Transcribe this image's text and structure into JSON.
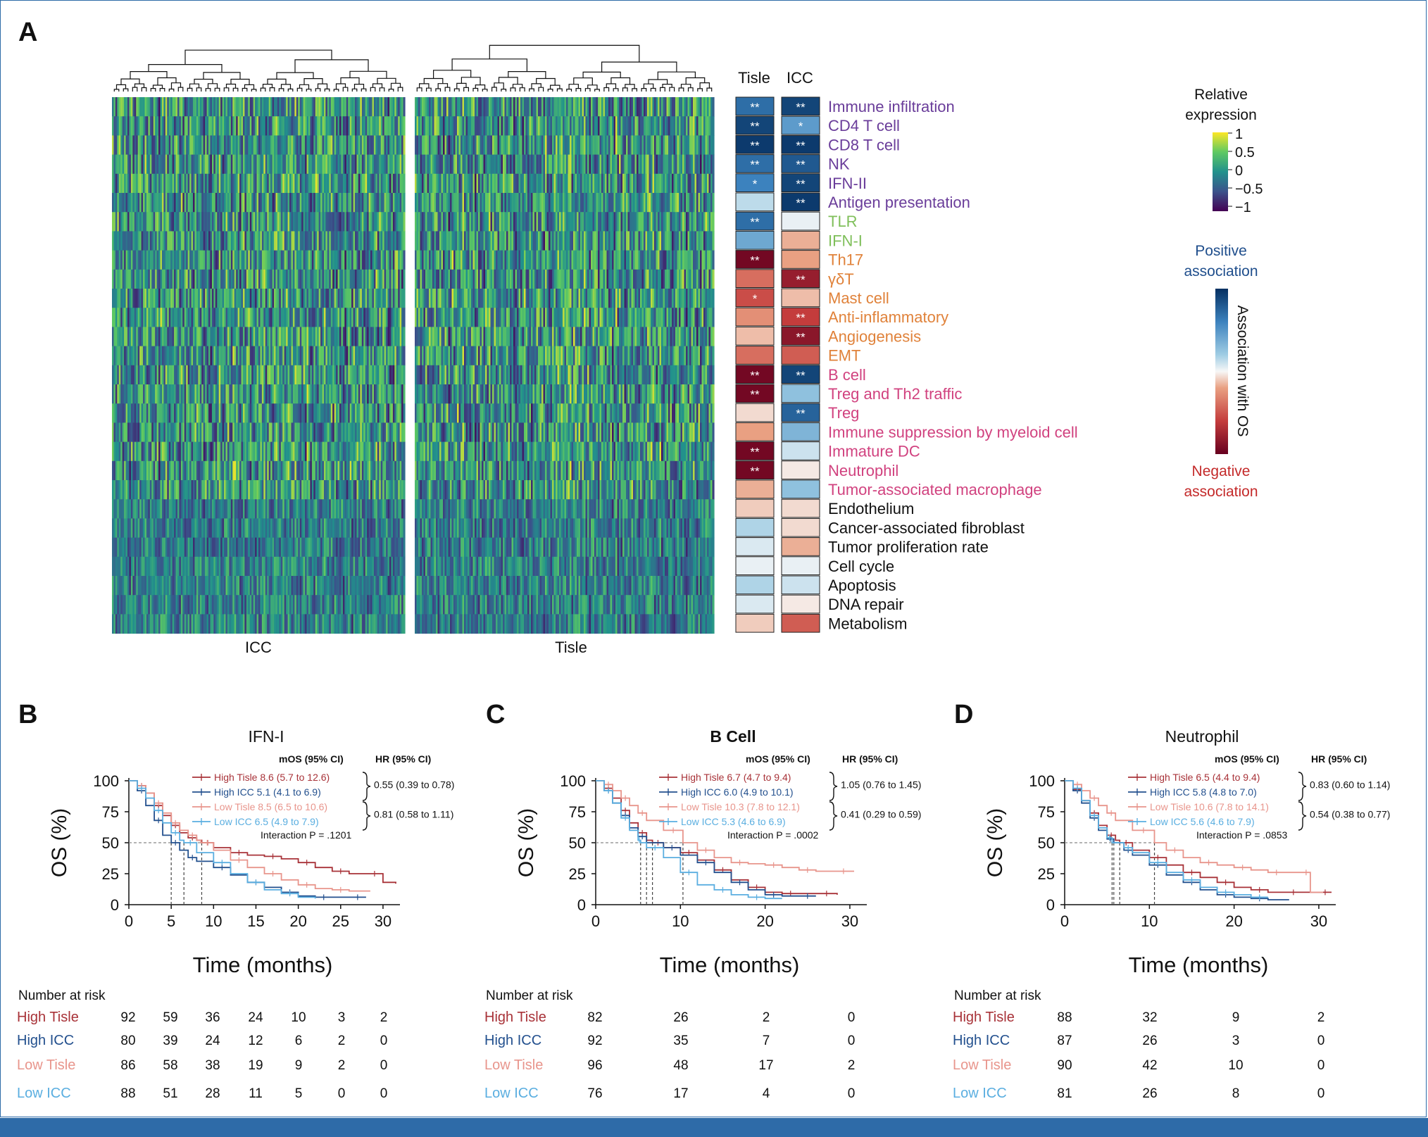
{
  "heatmap": {
    "panel_letter": "A",
    "left_label": "ICC",
    "right_label": "Tisle",
    "assoc_headers": [
      "Tisle",
      "ICC"
    ],
    "colorbar_title": [
      "Relative",
      "expression"
    ],
    "colorbar_ticks": [
      "1",
      "0.5",
      "0",
      "−0.5",
      "−1"
    ],
    "positive_label": [
      "Positive",
      "association"
    ],
    "negative_label": [
      "Negative",
      "association"
    ],
    "assoc_axis_label": "Association with OS",
    "rows": [
      {
        "name": "Immune infiltration",
        "color": "#6a3d9a",
        "tisle": 0.7,
        "icc": 0.9,
        "tisle_star": "**",
        "icc_star": "**"
      },
      {
        "name": "CD4 T cell",
        "color": "#6a3d9a",
        "tisle": 0.9,
        "icc": 0.5,
        "tisle_star": "**",
        "icc_star": "*"
      },
      {
        "name": "CD8 T cell",
        "color": "#6a3d9a",
        "tisle": 0.95,
        "icc": 0.95,
        "tisle_star": "**",
        "icc_star": "**"
      },
      {
        "name": "NK",
        "color": "#6a3d9a",
        "tisle": 0.7,
        "icc": 0.8,
        "tisle_star": "**",
        "icc_star": "**"
      },
      {
        "name": "IFN-II",
        "color": "#6a3d9a",
        "tisle": 0.6,
        "icc": 0.9,
        "tisle_star": "*",
        "icc_star": "**"
      },
      {
        "name": "Antigen presentation",
        "color": "#6a3d9a",
        "tisle": 0.2,
        "icc": 0.95,
        "tisle_star": "",
        "icc_star": "**"
      },
      {
        "name": "TLR",
        "color": "#7fbf5a",
        "tisle": 0.7,
        "icc": 0.05,
        "tisle_star": "**",
        "icc_star": ""
      },
      {
        "name": "IFN-I",
        "color": "#7fbf5a",
        "tisle": 0.45,
        "icc": -0.25,
        "tisle_star": "",
        "icc_star": ""
      },
      {
        "name": "Th17",
        "color": "#e0823a",
        "tisle": -0.95,
        "icc": -0.3,
        "tisle_star": "**",
        "icc_star": ""
      },
      {
        "name": "γδT",
        "color": "#e0823a",
        "tisle": -0.45,
        "icc": -0.8,
        "tisle_star": "",
        "icc_star": "**"
      },
      {
        "name": "Mast cell",
        "color": "#e0823a",
        "tisle": -0.55,
        "icc": -0.2,
        "tisle_star": "*",
        "icc_star": ""
      },
      {
        "name": "Anti-inflammatory",
        "color": "#e0823a",
        "tisle": -0.35,
        "icc": -0.6,
        "tisle_star": "",
        "icc_star": "**"
      },
      {
        "name": "Angiogenesis",
        "color": "#e0823a",
        "tisle": -0.2,
        "icc": -0.85,
        "tisle_star": "",
        "icc_star": "**"
      },
      {
        "name": "EMT",
        "color": "#e0823a",
        "tisle": -0.45,
        "icc": -0.5,
        "tisle_star": "",
        "icc_star": ""
      },
      {
        "name": "B cell",
        "color": "#d1427f",
        "tisle": -0.95,
        "icc": 0.9,
        "tisle_star": "**",
        "icc_star": "**"
      },
      {
        "name": "Treg and Th2 traffic",
        "color": "#d1427f",
        "tisle": -0.95,
        "icc": 0.35,
        "tisle_star": "**",
        "icc_star": ""
      },
      {
        "name": "Treg",
        "color": "#d1427f",
        "tisle": -0.1,
        "icc": 0.75,
        "tisle_star": "",
        "icc_star": "**"
      },
      {
        "name": "Immune suppression by myeloid cell",
        "color": "#d1427f",
        "tisle": -0.3,
        "icc": 0.4,
        "tisle_star": "",
        "icc_star": ""
      },
      {
        "name": "Immature DC",
        "color": "#d1427f",
        "tisle": -0.95,
        "icc": 0.15,
        "tisle_star": "**",
        "icc_star": ""
      },
      {
        "name": "Neutrophil",
        "color": "#d1427f",
        "tisle": -0.95,
        "icc": -0.05,
        "tisle_star": "**",
        "icc_star": ""
      },
      {
        "name": "Tumor-associated macrophage",
        "color": "#d1427f",
        "tisle": -0.25,
        "icc": 0.35,
        "tisle_star": "",
        "icc_star": ""
      },
      {
        "name": "Endothelium",
        "color": "#111111",
        "tisle": -0.15,
        "icc": -0.1,
        "tisle_star": "",
        "icc_star": ""
      },
      {
        "name": "Cancer-associated fibroblast",
        "color": "#111111",
        "tisle": 0.25,
        "icc": -0.1,
        "tisle_star": "",
        "icc_star": ""
      },
      {
        "name": "Tumor proliferation rate",
        "color": "#111111",
        "tisle": 0.1,
        "icc": -0.25,
        "tisle_star": "",
        "icc_star": ""
      },
      {
        "name": "Cell cycle",
        "color": "#111111",
        "tisle": 0.05,
        "icc": 0.05,
        "tisle_star": "",
        "icc_star": ""
      },
      {
        "name": "Apoptosis",
        "color": "#111111",
        "tisle": 0.25,
        "icc": 0.15,
        "tisle_star": "",
        "icc_star": ""
      },
      {
        "name": "DNA repair",
        "color": "#111111",
        "tisle": 0.1,
        "icc": -0.05,
        "tisle_star": "",
        "icc_star": ""
      },
      {
        "name": "Metabolism",
        "color": "#111111",
        "tisle": -0.15,
        "icc": -0.5,
        "tisle_star": "",
        "icc_star": ""
      }
    ]
  },
  "chart_data": [
    {
      "type": "line",
      "panel": "B",
      "title": "IFN-I",
      "xlabel": "Time (months)",
      "ylabel": "OS (%)",
      "xlim": [
        0,
        32
      ],
      "ylim": [
        0,
        100
      ],
      "xticks": [
        0,
        5,
        10,
        15,
        20,
        25,
        30
      ],
      "yticks": [
        0,
        25,
        50,
        75,
        100
      ],
      "mos_header": "mOS (95% CI)",
      "hr_header": "HR (95% CI)",
      "hr": [
        "0.55 (0.39 to 0.78)",
        "0.81 (0.58 to 1.11)"
      ],
      "interaction": "Interaction P = .1201",
      "medians": [
        5,
        6.5,
        8.6
      ],
      "series": [
        {
          "name": "High Tisle",
          "legend": "High Tisle 8.6 (5.7 to 12.6)",
          "color": "#a83238",
          "x": [
            0,
            1,
            2,
            3,
            4,
            5,
            6,
            7,
            8,
            8.6,
            10,
            12,
            14,
            16,
            18,
            20,
            22,
            24,
            26,
            28,
            30,
            31.5
          ],
          "y": [
            100,
            96,
            90,
            80,
            72,
            64,
            58,
            54,
            52,
            50,
            46,
            42,
            40,
            39,
            37,
            34,
            30,
            27,
            25,
            25,
            18,
            17
          ]
        },
        {
          "name": "High ICC",
          "legend": "High ICC 5.1 (4.1 to 6.9)",
          "color": "#23508e",
          "x": [
            0,
            1,
            2,
            3,
            4,
            5,
            6,
            7,
            8,
            10,
            12,
            14,
            16,
            18,
            20,
            22,
            24,
            26,
            28
          ],
          "y": [
            100,
            92,
            80,
            68,
            56,
            50,
            44,
            38,
            35,
            30,
            24,
            18,
            14,
            10,
            7,
            6,
            6,
            6,
            6
          ]
        },
        {
          "name": "Low Tisle",
          "legend": "Low Tisle 8.5 (6.5 to 10.6)",
          "color": "#e8958c",
          "x": [
            0,
            1,
            2,
            3,
            4,
            5,
            6,
            7,
            8,
            8.5,
            10,
            12,
            14,
            16,
            18,
            20,
            22,
            24,
            26,
            28.5
          ],
          "y": [
            100,
            96,
            90,
            82,
            74,
            66,
            60,
            56,
            52,
            50,
            44,
            36,
            30,
            25,
            20,
            16,
            13,
            12,
            11,
            11
          ]
        },
        {
          "name": "Low ICC",
          "legend": "Low ICC 6.5 (4.9 to 7.9)",
          "color": "#5aaee0",
          "x": [
            0,
            1,
            2,
            3,
            4,
            5,
            6,
            6.5,
            8,
            10,
            12,
            14,
            16,
            18,
            20,
            22
          ],
          "y": [
            100,
            94,
            86,
            76,
            66,
            58,
            52,
            50,
            42,
            34,
            25,
            18,
            12,
            9,
            6,
            5
          ]
        }
      ],
      "risk_title": "Number at risk",
      "risk_times": [
        0,
        5,
        10,
        15,
        20,
        25,
        30
      ],
      "risk": [
        {
          "label": "High Tisle",
          "counts": [
            "92",
            "59",
            "36",
            "24",
            "10",
            "3",
            "2"
          ]
        },
        {
          "label": "High ICC",
          "counts": [
            "80",
            "39",
            "24",
            "12",
            "6",
            "2",
            "0"
          ]
        },
        {
          "label": "Low Tisle",
          "counts": [
            "86",
            "58",
            "38",
            "19",
            "9",
            "2",
            "0"
          ]
        },
        {
          "label": "Low ICC",
          "counts": [
            "88",
            "51",
            "28",
            "11",
            "5",
            "0",
            "0"
          ]
        }
      ]
    },
    {
      "type": "line",
      "panel": "C",
      "title": "B Cell",
      "xlabel": "Time (months)",
      "ylabel": "OS (%)",
      "xlim": [
        0,
        32
      ],
      "ylim": [
        0,
        100
      ],
      "xticks": [
        0,
        10,
        20,
        30
      ],
      "yticks": [
        0,
        25,
        50,
        75,
        100
      ],
      "mos_header": "mOS (95% CI)",
      "hr_header": "HR (95% CI)",
      "hr": [
        "1.05 (0.76 to 1.45)",
        "0.41 (0.29 to 0.59)"
      ],
      "interaction": "Interaction P = .0002",
      "medians": [
        5.3,
        6,
        6.7,
        10.3
      ],
      "series": [
        {
          "name": "High Tisle",
          "legend": "High Tisle 6.7 (4.7 to 9.4)",
          "color": "#a83238",
          "x": [
            0,
            1,
            2,
            3,
            4,
            5,
            6,
            6.7,
            8,
            10,
            12,
            14,
            16,
            18,
            20,
            22,
            24,
            26,
            28.5
          ],
          "y": [
            100,
            94,
            86,
            76,
            66,
            58,
            52,
            50,
            46,
            42,
            36,
            28,
            20,
            14,
            10,
            9,
            9,
            9,
            8
          ]
        },
        {
          "name": "High ICC",
          "legend": "High ICC 6.0 (4.9 to 10.1)",
          "color": "#23508e",
          "x": [
            0,
            1,
            2,
            3,
            4,
            5,
            6,
            8,
            10,
            12,
            14,
            16,
            18,
            20,
            22,
            24,
            26
          ],
          "y": [
            100,
            92,
            82,
            72,
            62,
            55,
            50,
            46,
            40,
            34,
            26,
            18,
            12,
            8,
            7,
            7,
            7
          ]
        },
        {
          "name": "Low Tisle",
          "legend": "Low Tisle 10.3 (7.8 to 12.1)",
          "color": "#e8958c",
          "x": [
            0,
            1,
            2,
            3,
            4,
            5,
            6,
            8,
            10.3,
            12,
            14,
            16,
            18,
            20,
            22,
            24,
            26,
            28,
            30.5
          ],
          "y": [
            100,
            97,
            92,
            86,
            80,
            74,
            68,
            60,
            50,
            44,
            38,
            34,
            33,
            32,
            30,
            28,
            27,
            27,
            27
          ]
        },
        {
          "name": "Low ICC",
          "legend": "Low ICC 5.3 (4.6 to 6.9)",
          "color": "#5aaee0",
          "x": [
            0,
            1,
            2,
            3,
            4,
            5,
            5.3,
            6,
            8,
            10,
            12,
            14,
            16,
            18,
            20,
            22
          ],
          "y": [
            100,
            92,
            82,
            70,
            60,
            52,
            50,
            46,
            38,
            26,
            16,
            12,
            8,
            6,
            5,
            5
          ]
        }
      ],
      "risk_title": "Number at risk",
      "risk_times": [
        0,
        10,
        20,
        30
      ],
      "risk": [
        {
          "label": "High Tisle",
          "counts": [
            "82",
            "26",
            "2",
            "0"
          ]
        },
        {
          "label": "High ICC",
          "counts": [
            "92",
            "35",
            "7",
            "0"
          ]
        },
        {
          "label": "Low Tisle",
          "counts": [
            "96",
            "48",
            "17",
            "2"
          ]
        },
        {
          "label": "Low ICC",
          "counts": [
            "76",
            "17",
            "4",
            "0"
          ]
        }
      ]
    },
    {
      "type": "line",
      "panel": "D",
      "title": "Neutrophil",
      "xlabel": "Time (months)",
      "ylabel": "OS (%)",
      "xlim": [
        0,
        32
      ],
      "ylim": [
        0,
        100
      ],
      "xticks": [
        0,
        10,
        20,
        30
      ],
      "yticks": [
        0,
        25,
        50,
        75,
        100
      ],
      "mos_header": "mOS (95% CI)",
      "hr_header": "HR (95% CI)",
      "hr": [
        "0.83 (0.60 to 1.14)",
        "0.54 (0.38 to 0.77)"
      ],
      "interaction": "Interaction P = .0853",
      "medians": [
        5.6,
        5.8,
        6.5,
        10.6
      ],
      "series": [
        {
          "name": "High Tisle",
          "legend": "High Tisle 6.5 (4.4 to 9.4)",
          "color": "#a83238",
          "x": [
            0,
            1,
            2,
            3,
            4,
            5,
            6,
            6.5,
            8,
            10,
            12,
            14,
            16,
            18,
            20,
            22,
            24,
            26,
            28,
            30,
            31.5
          ],
          "y": [
            100,
            93,
            84,
            74,
            64,
            56,
            52,
            50,
            44,
            38,
            32,
            26,
            22,
            18,
            14,
            12,
            10,
            10,
            10,
            10,
            10
          ]
        },
        {
          "name": "High ICC",
          "legend": "High ICC 5.8 (4.8 to 7.0)",
          "color": "#23508e",
          "x": [
            0,
            1,
            2,
            3,
            4,
            5,
            5.8,
            7,
            8,
            10,
            12,
            14,
            16,
            18,
            20,
            22,
            24,
            26.5
          ],
          "y": [
            100,
            92,
            82,
            70,
            60,
            53,
            50,
            44,
            40,
            32,
            24,
            18,
            12,
            8,
            6,
            5,
            4,
            4
          ]
        },
        {
          "name": "Low Tisle",
          "legend": "Low Tisle 10.6 (7.8 to 14.1)",
          "color": "#e8958c",
          "x": [
            0,
            1,
            2,
            3,
            4,
            5,
            6,
            8,
            10.6,
            12,
            14,
            16,
            18,
            20,
            22,
            24,
            26,
            28,
            29,
            30.5
          ],
          "y": [
            100,
            97,
            92,
            86,
            80,
            74,
            68,
            60,
            50,
            44,
            38,
            34,
            32,
            30,
            28,
            26,
            26,
            26,
            10,
            10
          ]
        },
        {
          "name": "Low ICC",
          "legend": "Low ICC 5.6 (4.6 to 7.9)",
          "color": "#5aaee0",
          "x": [
            0,
            1,
            2,
            3,
            4,
            5,
            5.6,
            7,
            8,
            10,
            12,
            14,
            16,
            18,
            20,
            22,
            24
          ],
          "y": [
            100,
            94,
            84,
            72,
            62,
            54,
            50,
            46,
            42,
            34,
            26,
            20,
            14,
            10,
            8,
            6,
            6
          ]
        }
      ],
      "risk_title": "Number at risk",
      "risk_times": [
        0,
        10,
        20,
        30
      ],
      "risk": [
        {
          "label": "High Tisle",
          "counts": [
            "88",
            "32",
            "9",
            "2"
          ]
        },
        {
          "label": "High ICC",
          "counts": [
            "87",
            "26",
            "3",
            "0"
          ]
        },
        {
          "label": "Low Tisle",
          "counts": [
            "90",
            "42",
            "10",
            "0"
          ]
        },
        {
          "label": "Low ICC",
          "counts": [
            "81",
            "26",
            "8",
            "0"
          ]
        }
      ]
    }
  ]
}
